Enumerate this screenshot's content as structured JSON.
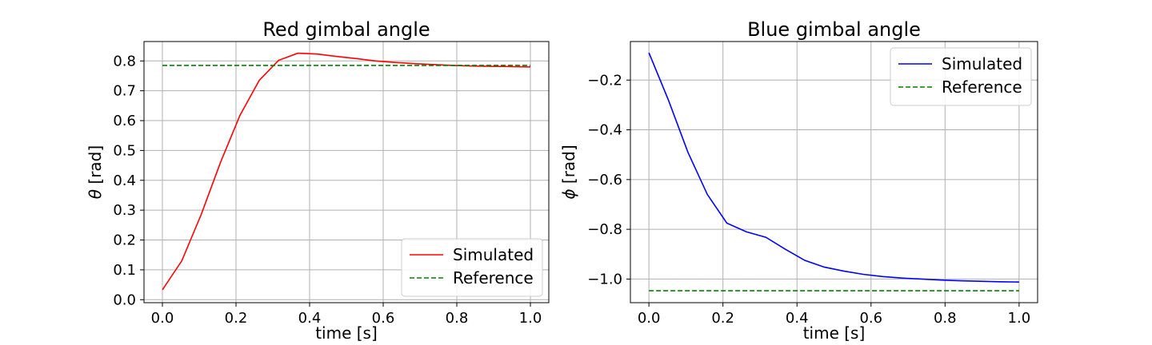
{
  "chart_data": [
    {
      "type": "line",
      "title": "Red gimbal angle",
      "xlabel": "time [s]",
      "ylabel_symbol": "θ",
      "ylabel_unit": " [rad]",
      "xlim": [
        -0.05,
        1.05
      ],
      "ylim": [
        -0.01,
        0.865
      ],
      "xticks": [
        0.0,
        0.2,
        0.4,
        0.6,
        0.8,
        1.0
      ],
      "xtick_labels": [
        "0.0",
        "0.2",
        "0.4",
        "0.6",
        "0.8",
        "1.0"
      ],
      "yticks": [
        0.0,
        0.1,
        0.2,
        0.3,
        0.4,
        0.5,
        0.6,
        0.7,
        0.8
      ],
      "ytick_labels": [
        "0.0",
        "0.1",
        "0.2",
        "0.3",
        "0.4",
        "0.5",
        "0.6",
        "0.7",
        "0.8"
      ],
      "grid": true,
      "legend_position": "lower-right",
      "series": [
        {
          "name": "Simulated",
          "color": "#ff0000",
          "style": "solid",
          "x": [
            0.0,
            0.0526,
            0.1053,
            0.1579,
            0.2105,
            0.2632,
            0.3158,
            0.3684,
            0.4211,
            0.4737,
            0.5263,
            0.5789,
            0.6316,
            0.6842,
            0.7368,
            0.7895,
            0.8421,
            0.8947,
            0.9474,
            1.0
          ],
          "y": [
            0.033,
            0.13,
            0.285,
            0.46,
            0.617,
            0.735,
            0.802,
            0.826,
            0.823,
            0.815,
            0.808,
            0.8,
            0.795,
            0.791,
            0.788,
            0.785,
            0.783,
            0.782,
            0.781,
            0.78
          ]
        },
        {
          "name": "Reference",
          "color": "#008000",
          "style": "dashed",
          "x": [
            0.0,
            1.0
          ],
          "y": [
            0.785,
            0.785
          ]
        }
      ]
    },
    {
      "type": "line",
      "title": "Blue gimbal angle",
      "xlabel": "time [s]",
      "ylabel_symbol": "ϕ",
      "ylabel_unit": " [rad]",
      "xlim": [
        -0.05,
        1.05
      ],
      "ylim": [
        -1.095,
        -0.045
      ],
      "xticks": [
        0.0,
        0.2,
        0.4,
        0.6,
        0.8,
        1.0
      ],
      "xtick_labels": [
        "0.0",
        "0.2",
        "0.4",
        "0.6",
        "0.8",
        "1.0"
      ],
      "yticks": [
        -1.0,
        -0.8,
        -0.6,
        -0.4,
        -0.2
      ],
      "ytick_labels": [
        "−1.0",
        "−0.8",
        "−0.6",
        "−0.4",
        "−0.2"
      ],
      "grid": true,
      "legend_position": "upper-right",
      "series": [
        {
          "name": "Simulated",
          "color": "#0000ff",
          "style": "solid",
          "x": [
            0.0,
            0.0526,
            0.1053,
            0.1579,
            0.2105,
            0.2632,
            0.3158,
            0.3684,
            0.4211,
            0.4737,
            0.5263,
            0.5789,
            0.6316,
            0.6842,
            0.7368,
            0.7895,
            0.8421,
            0.8947,
            0.9474,
            1.0
          ],
          "y": [
            -0.09,
            -0.28,
            -0.49,
            -0.66,
            -0.775,
            -0.81,
            -0.832,
            -0.88,
            -0.925,
            -0.952,
            -0.968,
            -0.981,
            -0.99,
            -0.996,
            -1.0,
            -1.004,
            -1.007,
            -1.009,
            -1.011,
            -1.012
          ]
        },
        {
          "name": "Reference",
          "color": "#008000",
          "style": "dashed",
          "x": [
            0.0,
            1.0
          ],
          "y": [
            -1.047,
            -1.047
          ]
        }
      ]
    }
  ]
}
